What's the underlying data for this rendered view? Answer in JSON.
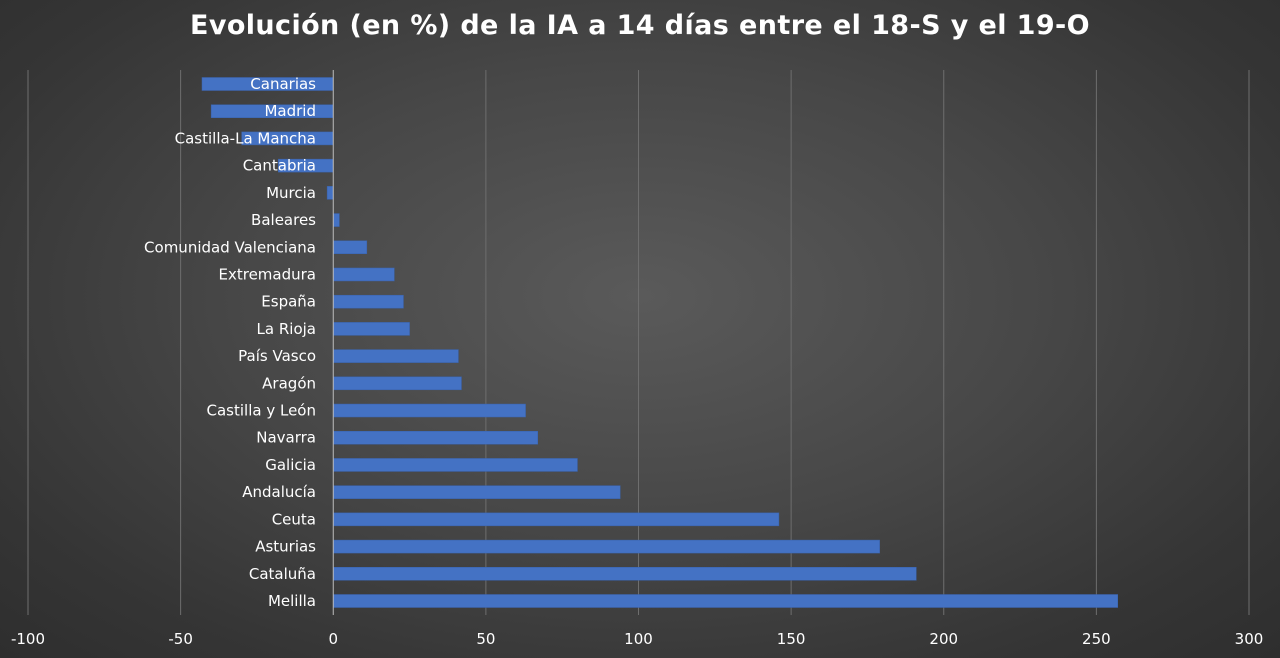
{
  "chart_data": {
    "type": "bar",
    "orientation": "horizontal",
    "title": "Evolución (en %) de la IA a 14 días entre el 18-S y el 19-O",
    "categories": [
      "Canarias",
      "Madrid",
      "Castilla-La Mancha",
      "Cantabria",
      "Murcia",
      "Baleares",
      "Comunidad Valenciana",
      "Extremadura",
      "España",
      "La Rioja",
      "País Vasco",
      "Aragón",
      "Castilla y León",
      "Navarra",
      "Galicia",
      "Andalucía",
      "Ceuta",
      "Asturias",
      "Cataluña",
      "Melilla"
    ],
    "values": [
      -43,
      -40,
      -30,
      -18,
      -2,
      2,
      11,
      20,
      23,
      25,
      41,
      42,
      63,
      67,
      80,
      94,
      146,
      179,
      191,
      257
    ],
    "xlim": [
      -100,
      300
    ],
    "xticks": [
      -100,
      -50,
      0,
      50,
      100,
      150,
      200,
      250,
      300
    ],
    "xlabel": "",
    "ylabel": "",
    "grid": true,
    "bar_color": "#4472c4",
    "grid_color": "#6e6e6e",
    "text_color": "#ffffff"
  }
}
